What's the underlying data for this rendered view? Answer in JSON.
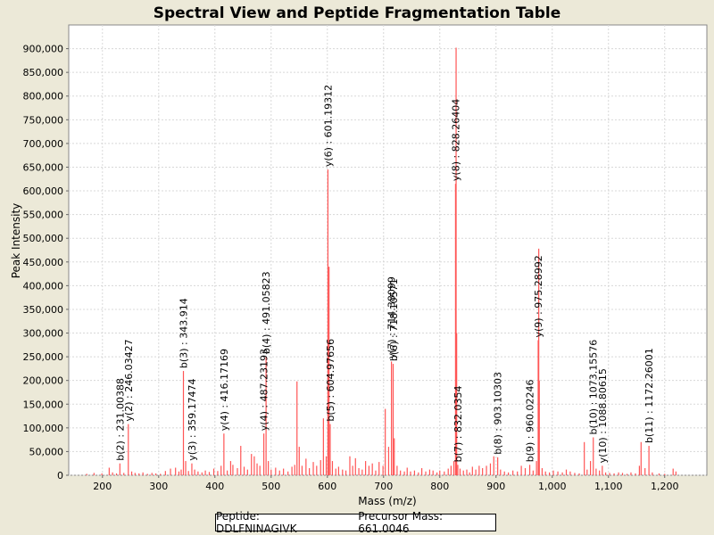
{
  "chart_data": {
    "type": "bar",
    "title": "Spectral View and Peptide Fragmentation Table",
    "xlabel": "Mass (m/z)",
    "ylabel": "Peak Intensity",
    "xlim": [
      140,
      1275
    ],
    "ylim": [
      0,
      950000
    ],
    "xticks": [
      200,
      300,
      400,
      500,
      600,
      700,
      800,
      900,
      1000,
      1100,
      1200
    ],
    "xtick_labels": [
      "200",
      "300",
      "400",
      "500",
      "600",
      "700",
      "800",
      "900",
      "1,000",
      "1,100",
      "1,200"
    ],
    "yticks": [
      0,
      50000,
      100000,
      150000,
      200000,
      250000,
      300000,
      350000,
      400000,
      450000,
      500000,
      550000,
      600000,
      650000,
      700000,
      750000,
      800000,
      850000,
      900000
    ],
    "ytick_labels": [
      "0",
      "50,000",
      "100,000",
      "150,000",
      "200,000",
      "250,000",
      "300,000",
      "350,000",
      "400,000",
      "450,000",
      "500,000",
      "550,000",
      "600,000",
      "650,000",
      "700,000",
      "750,000",
      "800,000",
      "850,000",
      "900,000"
    ],
    "peak_color": "#ff5555",
    "peaks": [
      [
        172,
        3000
      ],
      [
        185,
        5000
      ],
      [
        199,
        4000
      ],
      [
        212,
        16000
      ],
      [
        218,
        6000
      ],
      [
        225,
        4000
      ],
      [
        231,
        25000
      ],
      [
        238,
        5000
      ],
      [
        246,
        108000
      ],
      [
        252,
        8000
      ],
      [
        258,
        5000
      ],
      [
        265,
        4000
      ],
      [
        272,
        6000
      ],
      [
        280,
        3000
      ],
      [
        288,
        5000
      ],
      [
        295,
        4000
      ],
      [
        303,
        3000
      ],
      [
        312,
        9000
      ],
      [
        321,
        14000
      ],
      [
        330,
        16000
      ],
      [
        336,
        8000
      ],
      [
        340,
        12000
      ],
      [
        344,
        220000
      ],
      [
        348,
        30000
      ],
      [
        353,
        9000
      ],
      [
        359,
        25000
      ],
      [
        364,
        12000
      ],
      [
        370,
        8000
      ],
      [
        377,
        6000
      ],
      [
        383,
        10000
      ],
      [
        390,
        7000
      ],
      [
        398,
        14000
      ],
      [
        405,
        9000
      ],
      [
        411,
        20000
      ],
      [
        416,
        88000
      ],
      [
        422,
        10000
      ],
      [
        428,
        30000
      ],
      [
        432,
        22000
      ],
      [
        440,
        15000
      ],
      [
        446,
        62000
      ],
      [
        452,
        18000
      ],
      [
        458,
        12000
      ],
      [
        465,
        45000
      ],
      [
        470,
        40000
      ],
      [
        475,
        25000
      ],
      [
        480,
        20000
      ],
      [
        487,
        88000
      ],
      [
        491,
        250000
      ],
      [
        495,
        30000
      ],
      [
        500,
        12000
      ],
      [
        508,
        16000
      ],
      [
        515,
        10000
      ],
      [
        522,
        14000
      ],
      [
        530,
        8000
      ],
      [
        537,
        18000
      ],
      [
        542,
        22000
      ],
      [
        546,
        198000
      ],
      [
        550,
        60000
      ],
      [
        555,
        20000
      ],
      [
        562,
        35000
      ],
      [
        568,
        15000
      ],
      [
        575,
        28000
      ],
      [
        581,
        20000
      ],
      [
        588,
        32000
      ],
      [
        593,
        120000
      ],
      [
        598,
        40000
      ],
      [
        601,
        645000
      ],
      [
        603,
        440000
      ],
      [
        605,
        108000
      ],
      [
        609,
        30000
      ],
      [
        615,
        14000
      ],
      [
        620,
        18000
      ],
      [
        627,
        12000
      ],
      [
        633,
        10000
      ],
      [
        640,
        40000
      ],
      [
        645,
        20000
      ],
      [
        650,
        36000
      ],
      [
        656,
        15000
      ],
      [
        662,
        12000
      ],
      [
        668,
        30000
      ],
      [
        674,
        20000
      ],
      [
        680,
        25000
      ],
      [
        686,
        10000
      ],
      [
        692,
        28000
      ],
      [
        699,
        20000
      ],
      [
        703,
        140000
      ],
      [
        709,
        60000
      ],
      [
        714,
        240000
      ],
      [
        717,
        235000
      ],
      [
        719,
        78000
      ],
      [
        724,
        20000
      ],
      [
        730,
        10000
      ],
      [
        737,
        8000
      ],
      [
        742,
        16000
      ],
      [
        748,
        8000
      ],
      [
        755,
        10000
      ],
      [
        762,
        6000
      ],
      [
        768,
        15000
      ],
      [
        775,
        8000
      ],
      [
        782,
        12000
      ],
      [
        788,
        10000
      ],
      [
        795,
        6000
      ],
      [
        800,
        10000
      ],
      [
        808,
        8000
      ],
      [
        815,
        14000
      ],
      [
        820,
        20000
      ],
      [
        825,
        30000
      ],
      [
        828,
        615000
      ],
      [
        829,
        902000
      ],
      [
        830,
        300000
      ],
      [
        832,
        22000
      ],
      [
        836,
        14000
      ],
      [
        842,
        10000
      ],
      [
        848,
        12000
      ],
      [
        853,
        6000
      ],
      [
        858,
        18000
      ],
      [
        864,
        12000
      ],
      [
        870,
        20000
      ],
      [
        876,
        15000
      ],
      [
        883,
        20000
      ],
      [
        890,
        25000
      ],
      [
        896,
        40000
      ],
      [
        903,
        38000
      ],
      [
        908,
        12000
      ],
      [
        915,
        8000
      ],
      [
        922,
        6000
      ],
      [
        930,
        10000
      ],
      [
        938,
        8000
      ],
      [
        945,
        20000
      ],
      [
        952,
        15000
      ],
      [
        960,
        22000
      ],
      [
        966,
        10000
      ],
      [
        972,
        30000
      ],
      [
        975,
        285000
      ],
      [
        976,
        478000
      ],
      [
        977,
        200000
      ],
      [
        982,
        15000
      ],
      [
        988,
        8000
      ],
      [
        995,
        6000
      ],
      [
        1002,
        10000
      ],
      [
        1010,
        8000
      ],
      [
        1018,
        6000
      ],
      [
        1025,
        12000
      ],
      [
        1032,
        8000
      ],
      [
        1040,
        5000
      ],
      [
        1048,
        4000
      ],
      [
        1057,
        70000
      ],
      [
        1062,
        12000
      ],
      [
        1068,
        30000
      ],
      [
        1073,
        80000
      ],
      [
        1078,
        14000
      ],
      [
        1084,
        10000
      ],
      [
        1089,
        20000
      ],
      [
        1095,
        6000
      ],
      [
        1102,
        5000
      ],
      [
        1110,
        4000
      ],
      [
        1118,
        6000
      ],
      [
        1125,
        5000
      ],
      [
        1133,
        3000
      ],
      [
        1140,
        6000
      ],
      [
        1148,
        4000
      ],
      [
        1155,
        20000
      ],
      [
        1158,
        70000
      ],
      [
        1165,
        15000
      ],
      [
        1172,
        62000
      ],
      [
        1178,
        6000
      ],
      [
        1190,
        4000
      ],
      [
        1200,
        3000
      ],
      [
        1215,
        14000
      ],
      [
        1220,
        8000
      ]
    ],
    "annotations": [
      {
        "label": "b(2) : 231.00388",
        "x": 231,
        "y": 25000
      },
      {
        "label": "y(2) : 246.03427",
        "x": 246,
        "y": 108000
      },
      {
        "label": "b(3) : 343.914",
        "x": 344,
        "y": 220000
      },
      {
        "label": "y(3) : 359.17474",
        "x": 359,
        "y": 25000
      },
      {
        "label": "y(4) : 416.17169",
        "x": 416,
        "y": 88000
      },
      {
        "label": "y(4) : 487.23193",
        "x": 487,
        "y": 88000
      },
      {
        "label": "b(4) : 491.05823",
        "x": 491,
        "y": 250000
      },
      {
        "label": "y(6) : 601.19312",
        "x": 601,
        "y": 645000
      },
      {
        "label": "b(5) : 604.97656",
        "x": 605,
        "y": 108000
      },
      {
        "label": "y(7) : 714.38099",
        "x": 714,
        "y": 240000
      },
      {
        "label": "b(6) : 718.10571",
        "x": 718,
        "y": 235000
      },
      {
        "label": "y(8) : 828.26404",
        "x": 828,
        "y": 615000
      },
      {
        "label": "b(7) : 832.0354",
        "x": 832,
        "y": 22000
      },
      {
        "label": "b(8) : 903.10303",
        "x": 903,
        "y": 38000
      },
      {
        "label": "b(9) : 960.02246",
        "x": 960,
        "y": 22000
      },
      {
        "label": "y(9) : 975.28992",
        "x": 975,
        "y": 285000
      },
      {
        "label": "b(10) : 1073.15576",
        "x": 1073,
        "y": 80000
      },
      {
        "label": "y(10) : 1088.80615",
        "x": 1089,
        "y": 20000
      },
      {
        "label": "b(11) : 1172.26001",
        "x": 1172,
        "y": 62000
      }
    ]
  },
  "info": {
    "peptide": "Peptide: DDLFNINAGIVK",
    "precursor": "Precursor Mass: 661.0046"
  }
}
